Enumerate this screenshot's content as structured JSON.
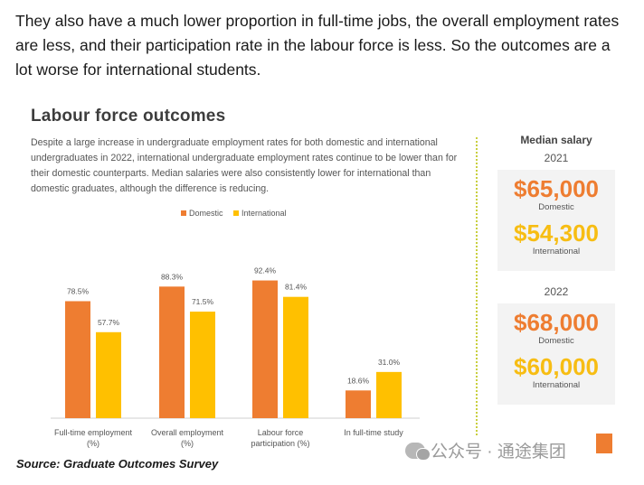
{
  "intro_text": "They also have a much lower proportion in full-time jobs, the overall employment rates are less, and their participation rate in the labour force is less. So the outcomes are a lot worse for international students.",
  "slide": {
    "title": "Labour force outcomes",
    "description": "Despite a large increase in undergraduate employment rates for both domestic and international undergraduates in 2022, international undergraduate employment rates continue to be lower than for their domestic counterparts. Median salaries were also consistently lower for international than domestic graduates, although the difference is reducing."
  },
  "chart_data": {
    "type": "bar",
    "title": "",
    "legend_position": "top",
    "categories": [
      "Full-time employment\n(%)",
      "Overall employment\n(%)",
      "Labour force\nparticipation (%)",
      "In full-time study"
    ],
    "series": [
      {
        "name": "Domestic",
        "color": "#ee7d31",
        "values": [
          78.5,
          88.3,
          92.4,
          18.6
        ],
        "labels": [
          "78.5%",
          "88.3%",
          "92.4%",
          "18.6%"
        ]
      },
      {
        "name": "International",
        "color": "#ffc000",
        "values": [
          57.7,
          71.5,
          81.4,
          31.0
        ],
        "labels": [
          "57.7%",
          "71.5%",
          "81.4%",
          "31.0%"
        ]
      }
    ],
    "ylim": [
      0,
      100
    ],
    "grid": false
  },
  "salary": {
    "heading": "Median salary",
    "years": [
      {
        "year": "2021",
        "domestic_value": "$65,000",
        "domestic_label": "Domestic",
        "international_value": "$54,300",
        "international_label": "International"
      },
      {
        "year": "2022",
        "domestic_value": "$68,000",
        "domestic_label": "Domestic",
        "international_value": "$60,000",
        "international_label": "International"
      }
    ]
  },
  "source": "Source: Graduate Outcomes Survey",
  "watermark": "公众号 · 通途集团"
}
